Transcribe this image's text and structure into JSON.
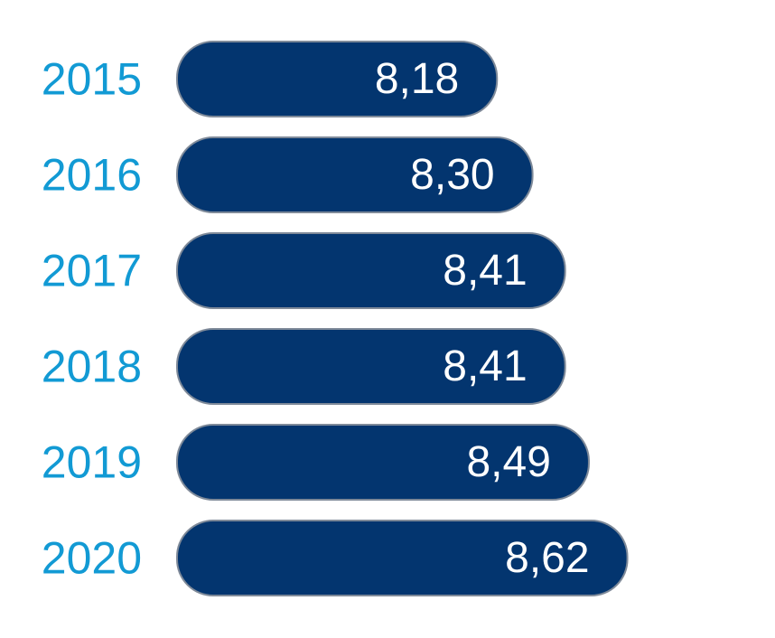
{
  "chart_data": {
    "type": "bar",
    "orientation": "horizontal",
    "categories": [
      "2015",
      "2016",
      "2017",
      "2018",
      "2019",
      "2020"
    ],
    "values": [
      8.18,
      8.3,
      8.41,
      8.41,
      8.49,
      8.62
    ],
    "value_labels": [
      "8,18",
      "8,30",
      "8,41",
      "8,41",
      "8,49",
      "8,62"
    ],
    "title": "",
    "xlabel": "",
    "ylabel": "",
    "grid": false,
    "legend": "none"
  },
  "colors": {
    "bar_fill": "#03356F",
    "bar_stroke": "#7F8A99",
    "category_text": "#129AD4",
    "value_text": "#FFFFFF"
  }
}
